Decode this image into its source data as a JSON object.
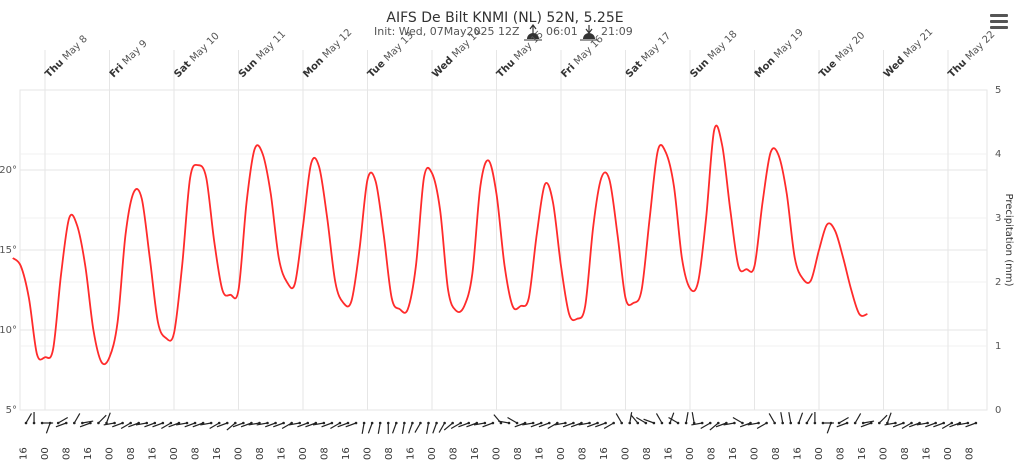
{
  "title": "AIFS De Bilt KNMI (NL) 52N, 5.25E",
  "subtitle_init": "Init: Wed, 07May2025 12Z",
  "sunrise": "06:01",
  "sunset": "21:09",
  "menu_icon": "hamburger-menu-icon",
  "colors": {
    "temperature": "#ff2b2b",
    "grid": "#e6e6e6",
    "wind": "#222222"
  },
  "chart_data": {
    "type": "line",
    "title": "AIFS De Bilt KNMI (NL) 52N, 5.25E",
    "x_day_labels": [
      {
        "weekday": "Thu",
        "date": "May 8"
      },
      {
        "weekday": "Fri",
        "date": "May 9"
      },
      {
        "weekday": "Sat",
        "date": "May 10"
      },
      {
        "weekday": "Sun",
        "date": "May 11"
      },
      {
        "weekday": "Mon",
        "date": "May 12"
      },
      {
        "weekday": "Tue",
        "date": "May 13"
      },
      {
        "weekday": "Wed",
        "date": "May 14"
      },
      {
        "weekday": "Thu",
        "date": "May 15"
      },
      {
        "weekday": "Fri",
        "date": "May 16"
      },
      {
        "weekday": "Sat",
        "date": "May 17"
      },
      {
        "weekday": "Sun",
        "date": "May 18"
      },
      {
        "weekday": "Mon",
        "date": "May 19"
      },
      {
        "weekday": "Tue",
        "date": "May 20"
      },
      {
        "weekday": "Wed",
        "date": "May 21"
      },
      {
        "weekday": "Thu",
        "date": "May 22"
      }
    ],
    "x_hour_labels": [
      "16",
      "00",
      "08",
      "16",
      "00",
      "08",
      "16",
      "00",
      "08",
      "16",
      "00",
      "08",
      "16",
      "00",
      "08",
      "16",
      "00",
      "08",
      "16",
      "00",
      "08",
      "16",
      "00",
      "08",
      "16",
      "00",
      "08",
      "16",
      "00",
      "08",
      "16",
      "00",
      "08",
      "16",
      "00",
      "08",
      "16",
      "00",
      "08",
      "16",
      "00",
      "08",
      "16",
      "00",
      "08"
    ],
    "y_left": {
      "ticks": [
        "5°",
        "10°",
        "15°",
        "20°"
      ],
      "min": 5,
      "max": 25
    },
    "y_right": {
      "label": "Precipitation (mm)",
      "ticks": [
        "0",
        "1",
        "2",
        "3",
        "4",
        "5"
      ],
      "min": 0,
      "max": 5
    },
    "series": [
      {
        "x_hours_since_thu_00": [
          -12,
          -9,
          -6,
          -3,
          0,
          3,
          6,
          9,
          12,
          15,
          18,
          21,
          24,
          27,
          30,
          33,
          36,
          39,
          42,
          45,
          48,
          51,
          54,
          57,
          60,
          63,
          66,
          69,
          72,
          75,
          78,
          81,
          84,
          87,
          90,
          93,
          96,
          99,
          102,
          105,
          108,
          111,
          114,
          117,
          120,
          123,
          126,
          129,
          132,
          135,
          138,
          141,
          144,
          147,
          150,
          153,
          156,
          159,
          162,
          165,
          168,
          171,
          174,
          177,
          180,
          183,
          186,
          189,
          192,
          195,
          198,
          201,
          204,
          207,
          210,
          213,
          216,
          219,
          222,
          225,
          228,
          231,
          234,
          237,
          240,
          243,
          246,
          249,
          252,
          255,
          258,
          261,
          264,
          267,
          270,
          273,
          276,
          279,
          282,
          285,
          288,
          291,
          294,
          297,
          300,
          303,
          306,
          309,
          312,
          315,
          318,
          321,
          324,
          327,
          330,
          333,
          336,
          339,
          342,
          345,
          348,
          351,
          354,
          357,
          360
        ],
        "values": [
          14.5,
          14.0,
          12.0,
          8.5,
          8.3,
          8.8,
          13.5,
          17.0,
          16.5,
          14.0,
          10.0,
          8.0,
          8.3,
          10.5,
          16.0,
          18.6,
          18.2,
          14.5,
          10.5,
          9.5,
          9.8,
          14.0,
          19.5,
          20.3,
          19.5,
          15.5,
          12.5,
          12.2,
          12.5,
          18.0,
          21.3,
          21.0,
          18.5,
          14.5,
          13.0,
          12.9,
          16.5,
          20.4,
          20.2,
          17.0,
          13.0,
          11.7,
          11.8,
          15.0,
          19.4,
          19.3,
          16.0,
          12.0,
          11.3,
          11.3,
          14.0,
          19.5,
          19.8,
          17.5,
          12.5,
          11.2,
          11.5,
          13.5,
          19.0,
          20.6,
          18.5,
          14.0,
          11.5,
          11.5,
          12.0,
          16.0,
          19.1,
          18.0,
          14.0,
          11.0,
          10.7,
          11.5,
          16.5,
          19.5,
          19.4,
          16.0,
          12.0,
          11.7,
          12.5,
          17.0,
          21.2,
          21.1,
          19.0,
          14.5,
          12.6,
          13.0,
          17.0,
          22.5,
          21.5,
          17.5,
          14.0,
          13.8,
          14.0,
          18.0,
          21.1,
          20.9,
          18.5,
          14.5,
          13.2,
          13.1,
          15.0,
          16.6,
          16.2,
          14.5,
          12.5,
          11.0,
          11.0,
          11.3
        ],
        "color": "#ff2b2b"
      }
    ],
    "grid": true,
    "legend": "none"
  }
}
